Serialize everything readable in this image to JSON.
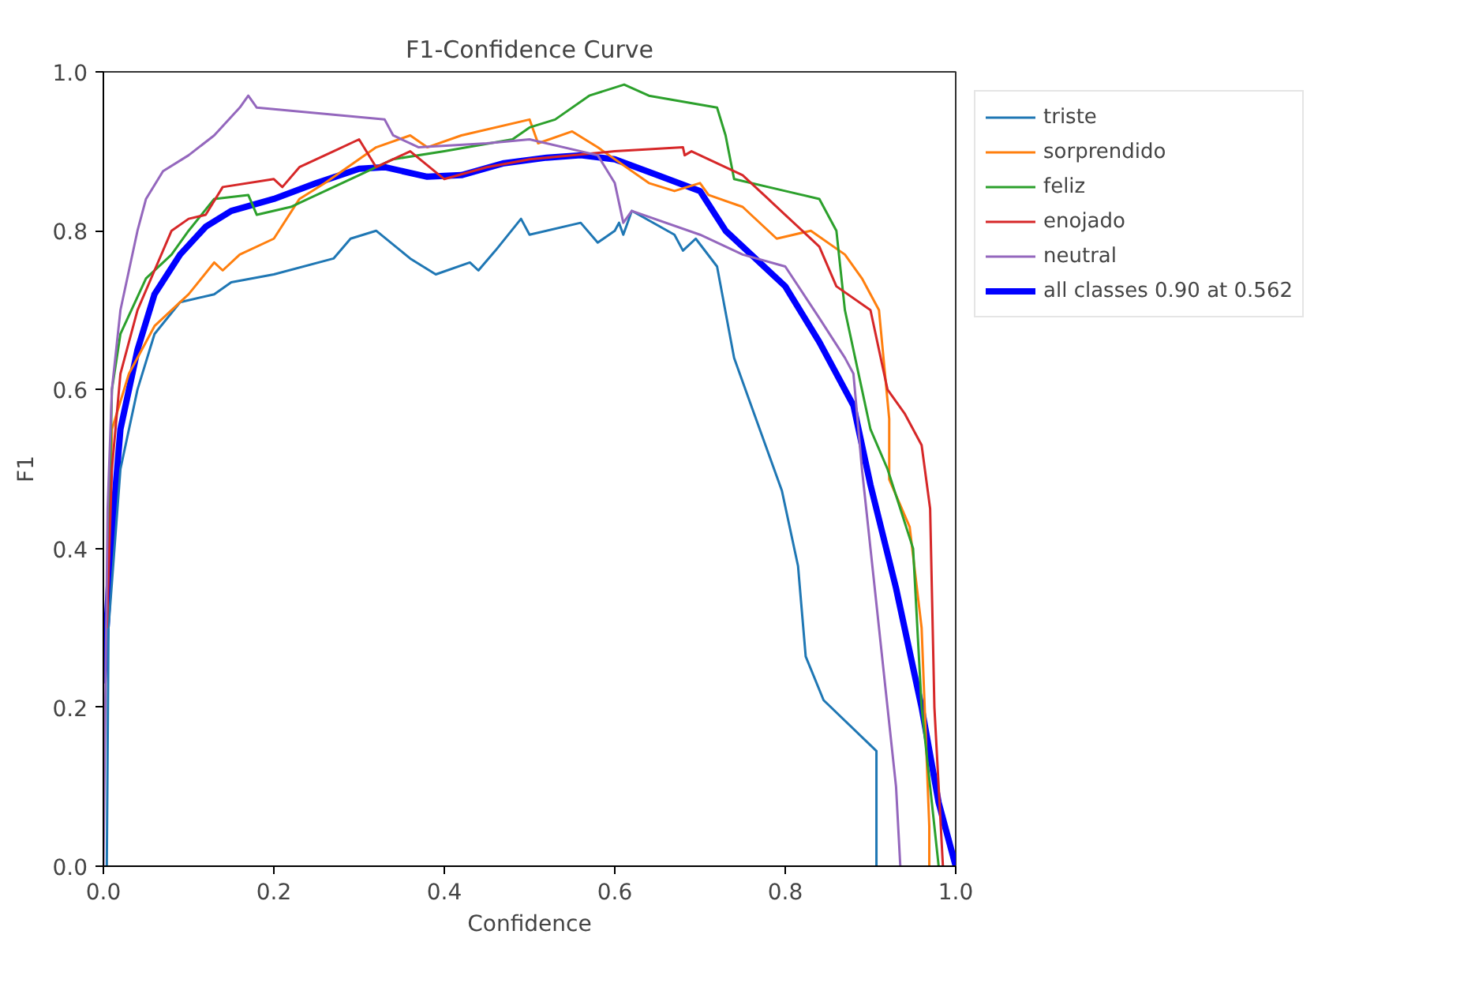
{
  "chart_data": {
    "type": "line",
    "title": "F1-Confidence Curve",
    "xlabel": "Confidence",
    "ylabel": "F1",
    "xlim": [
      0,
      1
    ],
    "ylim": [
      0,
      1
    ],
    "xticks": [
      {
        "value": 0,
        "label": "0.0"
      },
      0.2,
      0.4,
      0.6,
      0.8,
      {
        "value": 1,
        "label": "1.0"
      }
    ],
    "yticks": [
      {
        "value": 0,
        "label": "0.0"
      },
      0.2,
      0.4,
      0.6,
      0.8,
      {
        "value": 1,
        "label": "1.0"
      }
    ],
    "grid": false,
    "legend": "top right",
    "marker": "none",
    "line_style": "solid",
    "series": [
      {
        "name": "triste",
        "color": "#1f77b4",
        "x": [
          0.004,
          0.006,
          0.02,
          0.04,
          0.06,
          0.09,
          0.13,
          0.15,
          0.2,
          0.27,
          0.29,
          0.32,
          0.36,
          0.39,
          0.43,
          0.44,
          0.46,
          0.49,
          0.5,
          0.56,
          0.58,
          0.6,
          0.605,
          0.61,
          0.62,
          0.67,
          0.68,
          0.695,
          0.72,
          0.74,
          0.76,
          0.796,
          0.815,
          0.824,
          0.845,
          0.907,
          0.907
        ],
        "values": [
          0,
          0.3,
          0.5,
          0.6,
          0.67,
          0.71,
          0.72,
          0.735,
          0.745,
          0.765,
          0.79,
          0.8,
          0.765,
          0.745,
          0.76,
          0.75,
          0.775,
          0.815,
          0.795,
          0.81,
          0.785,
          0.8,
          0.81,
          0.795,
          0.825,
          0.795,
          0.775,
          0.79,
          0.755,
          0.64,
          0.58,
          0.473,
          0.378,
          0.264,
          0.209,
          0.145,
          0
        ]
      },
      {
        "name": "sorprendido",
        "color": "#ff7f0e",
        "x": [
          0.004,
          0.01,
          0.03,
          0.06,
          0.1,
          0.13,
          0.14,
          0.16,
          0.2,
          0.23,
          0.26,
          0.28,
          0.32,
          0.36,
          0.38,
          0.42,
          0.5,
          0.51,
          0.55,
          0.58,
          0.64,
          0.67,
          0.7,
          0.71,
          0.75,
          0.79,
          0.83,
          0.87,
          0.89,
          0.91,
          0.922,
          0.922,
          0.946,
          0.96,
          0.969,
          0.969
        ],
        "values": [
          0.3,
          0.55,
          0.62,
          0.68,
          0.72,
          0.76,
          0.75,
          0.77,
          0.79,
          0.84,
          0.86,
          0.875,
          0.905,
          0.92,
          0.905,
          0.92,
          0.94,
          0.91,
          0.925,
          0.905,
          0.86,
          0.85,
          0.86,
          0.845,
          0.83,
          0.79,
          0.8,
          0.77,
          0.74,
          0.7,
          0.563,
          0.487,
          0.427,
          0.3,
          0.05,
          0
        ]
      },
      {
        "name": "feliz",
        "color": "#2ca02c",
        "x": [
          0.004,
          0.01,
          0.02,
          0.05,
          0.08,
          0.1,
          0.13,
          0.17,
          0.18,
          0.22,
          0.3,
          0.34,
          0.4,
          0.48,
          0.5,
          0.53,
          0.57,
          0.611,
          0.64,
          0.72,
          0.73,
          0.74,
          0.8,
          0.84,
          0.86,
          0.87,
          0.89,
          0.9,
          0.92,
          0.95,
          0.96,
          0.98
        ],
        "values": [
          0.3,
          0.6,
          0.67,
          0.74,
          0.77,
          0.8,
          0.84,
          0.845,
          0.82,
          0.83,
          0.87,
          0.89,
          0.9,
          0.915,
          0.93,
          0.94,
          0.97,
          0.984,
          0.97,
          0.955,
          0.92,
          0.865,
          0.85,
          0.84,
          0.8,
          0.7,
          0.6,
          0.55,
          0.5,
          0.4,
          0.2,
          0
        ]
      },
      {
        "name": "enojado",
        "color": "#d62728",
        "x": [
          0.004,
          0.01,
          0.02,
          0.04,
          0.06,
          0.08,
          0.1,
          0.12,
          0.14,
          0.2,
          0.21,
          0.23,
          0.27,
          0.3,
          0.32,
          0.36,
          0.4,
          0.45,
          0.5,
          0.6,
          0.68,
          0.682,
          0.69,
          0.75,
          0.78,
          0.8,
          0.84,
          0.86,
          0.9,
          0.91,
          0.92,
          0.94,
          0.96,
          0.97,
          0.975,
          0.985
        ],
        "values": [
          0.3,
          0.5,
          0.62,
          0.7,
          0.75,
          0.8,
          0.815,
          0.82,
          0.855,
          0.865,
          0.855,
          0.88,
          0.9,
          0.915,
          0.88,
          0.9,
          0.865,
          0.88,
          0.89,
          0.9,
          0.905,
          0.895,
          0.9,
          0.87,
          0.84,
          0.82,
          0.78,
          0.73,
          0.7,
          0.65,
          0.6,
          0.57,
          0.53,
          0.45,
          0.2,
          0
        ]
      },
      {
        "name": "neutral",
        "color": "#9467bd",
        "x": [
          0,
          0.005,
          0.01,
          0.02,
          0.03,
          0.04,
          0.05,
          0.07,
          0.1,
          0.13,
          0.16,
          0.17,
          0.18,
          0.33,
          0.34,
          0.37,
          0.45,
          0.5,
          0.58,
          0.6,
          0.61,
          0.62,
          0.7,
          0.75,
          0.8,
          0.84,
          0.87,
          0.88,
          0.89,
          0.9,
          0.92,
          0.93,
          0.935
        ],
        "values": [
          0,
          0.45,
          0.6,
          0.7,
          0.75,
          0.8,
          0.84,
          0.875,
          0.895,
          0.92,
          0.955,
          0.97,
          0.955,
          0.94,
          0.92,
          0.905,
          0.91,
          0.915,
          0.895,
          0.86,
          0.81,
          0.825,
          0.795,
          0.77,
          0.755,
          0.69,
          0.64,
          0.62,
          0.5,
          0.4,
          0.2,
          0.1,
          0
        ]
      },
      {
        "name": "all classes 0.90 at 0.562",
        "color": "#0000ff",
        "x": [
          0,
          0.01,
          0.02,
          0.04,
          0.06,
          0.09,
          0.12,
          0.15,
          0.2,
          0.25,
          0.3,
          0.33,
          0.38,
          0.42,
          0.47,
          0.52,
          0.56,
          0.6,
          0.65,
          0.7,
          0.73,
          0.76,
          0.8,
          0.84,
          0.88,
          0.9,
          0.93,
          0.96,
          0.98,
          1.0
        ],
        "values": [
          0.23,
          0.42,
          0.55,
          0.65,
          0.72,
          0.77,
          0.805,
          0.825,
          0.84,
          0.86,
          0.878,
          0.88,
          0.868,
          0.87,
          0.885,
          0.892,
          0.895,
          0.89,
          0.87,
          0.85,
          0.8,
          0.77,
          0.73,
          0.66,
          0.58,
          0.48,
          0.35,
          0.2,
          0.08,
          0.0
        ]
      }
    ]
  }
}
